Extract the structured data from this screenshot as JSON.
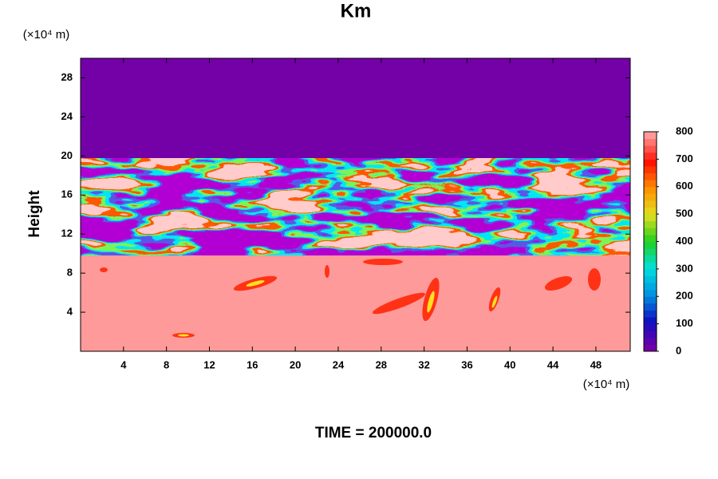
{
  "chart_data": {
    "type": "contour",
    "title": "Km",
    "y_unit": "(×10⁴ m)",
    "x_unit": "(×10⁴ m)",
    "y_label": "Height",
    "footer": "TIME = 200000.0",
    "xlim": [
      0,
      51.2
    ],
    "xticks": [
      4,
      8,
      12,
      16,
      20,
      24,
      28,
      32,
      36,
      40,
      44,
      48
    ],
    "ylim": [
      0,
      30
    ],
    "yticks": [
      4,
      8,
      12,
      16,
      20,
      24,
      28
    ],
    "zlim": [
      0,
      800
    ],
    "zticks": [
      0,
      100,
      200,
      300,
      400,
      500,
      600,
      700,
      800
    ],
    "colormap": [
      "#7400a8",
      "#1010c0",
      "#0090e0",
      "#00e0e0",
      "#20d020",
      "#e0e020",
      "#ff9000",
      "#ff1000",
      "#ff9a9a"
    ]
  }
}
